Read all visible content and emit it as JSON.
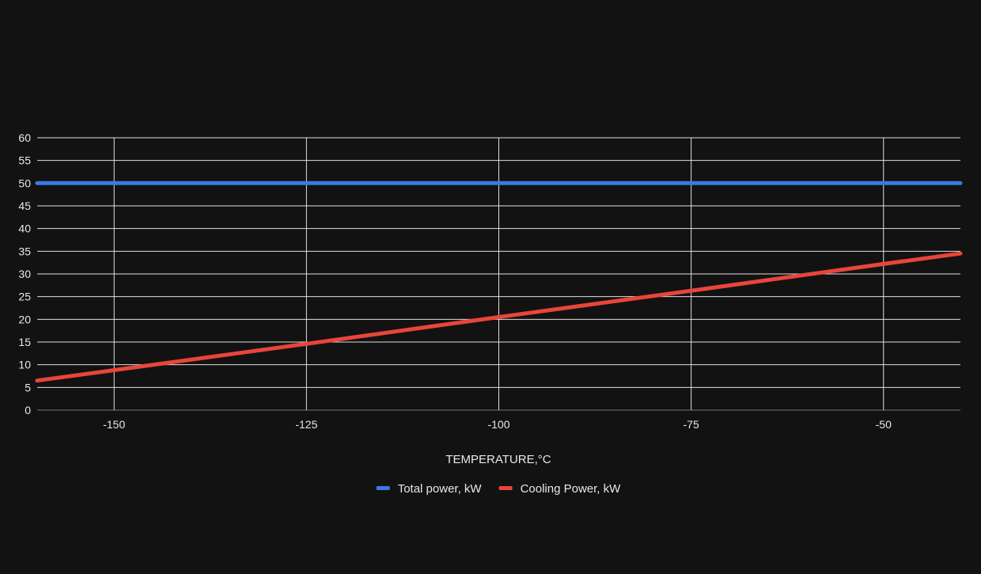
{
  "chart_data": {
    "type": "line",
    "title": "",
    "xlabel": "TEMPERATURE,°C",
    "ylabel": "",
    "xlim": [
      -160,
      -40
    ],
    "ylim": [
      0,
      60
    ],
    "x_ticks": [
      -150,
      -125,
      -100,
      -75,
      -50
    ],
    "y_ticks": [
      0,
      5,
      10,
      15,
      20,
      25,
      30,
      35,
      40,
      45,
      50,
      55,
      60
    ],
    "grid": true,
    "legend_position": "bottom",
    "series": [
      {
        "name": "Total power, kW",
        "color": "#3b78e7",
        "x": [
          -160,
          -40
        ],
        "y": [
          50,
          50
        ]
      },
      {
        "name": "Cooling Power, kW",
        "color": "#e8453c",
        "x": [
          -160,
          -150,
          -125,
          -100,
          -75,
          -50,
          -40
        ],
        "y": [
          6.5,
          8.8,
          14.6,
          20.5,
          26.3,
          32.2,
          34.5
        ]
      }
    ]
  },
  "colors": {
    "background": "#121212",
    "grid": "#e0e0e0",
    "text": "#e8e8e8"
  }
}
